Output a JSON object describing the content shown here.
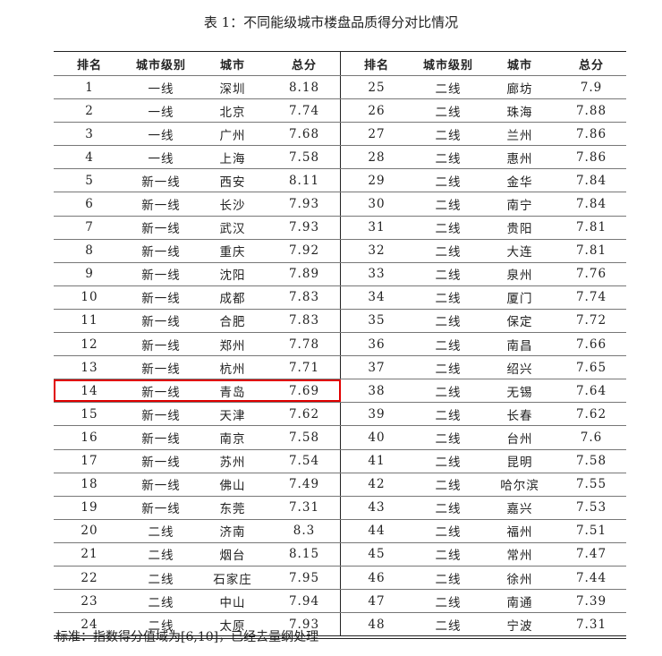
{
  "title": "表 1：不同能级城市楼盘品质得分对比情况",
  "headers": [
    "排名",
    "城市级别",
    "城市",
    "总分"
  ],
  "highlight_color": "#e00000",
  "highlighted_rank": "14",
  "rows_left": [
    [
      "1",
      "一线",
      "深圳",
      "8.18"
    ],
    [
      "2",
      "一线",
      "北京",
      "7.74"
    ],
    [
      "3",
      "一线",
      "广州",
      "7.68"
    ],
    [
      "4",
      "一线",
      "上海",
      "7.58"
    ],
    [
      "5",
      "新一线",
      "西安",
      "8.11"
    ],
    [
      "6",
      "新一线",
      "长沙",
      "7.93"
    ],
    [
      "7",
      "新一线",
      "武汉",
      "7.93"
    ],
    [
      "8",
      "新一线",
      "重庆",
      "7.92"
    ],
    [
      "9",
      "新一线",
      "沈阳",
      "7.89"
    ],
    [
      "10",
      "新一线",
      "成都",
      "7.83"
    ],
    [
      "11",
      "新一线",
      "合肥",
      "7.83"
    ],
    [
      "12",
      "新一线",
      "郑州",
      "7.78"
    ],
    [
      "13",
      "新一线",
      "杭州",
      "7.71"
    ],
    [
      "14",
      "新一线",
      "青岛",
      "7.69"
    ],
    [
      "15",
      "新一线",
      "天津",
      "7.62"
    ],
    [
      "16",
      "新一线",
      "南京",
      "7.58"
    ],
    [
      "17",
      "新一线",
      "苏州",
      "7.54"
    ],
    [
      "18",
      "新一线",
      "佛山",
      "7.49"
    ],
    [
      "19",
      "新一线",
      "东莞",
      "7.31"
    ],
    [
      "20",
      "二线",
      "济南",
      "8.3"
    ],
    [
      "21",
      "二线",
      "烟台",
      "8.15"
    ],
    [
      "22",
      "二线",
      "石家庄",
      "7.95"
    ],
    [
      "23",
      "二线",
      "中山",
      "7.94"
    ],
    [
      "24",
      "二线",
      "太原",
      "7.93"
    ]
  ],
  "rows_right": [
    [
      "25",
      "二线",
      "廊坊",
      "7.9"
    ],
    [
      "26",
      "二线",
      "珠海",
      "7.88"
    ],
    [
      "27",
      "二线",
      "兰州",
      "7.86"
    ],
    [
      "28",
      "二线",
      "惠州",
      "7.86"
    ],
    [
      "29",
      "二线",
      "金华",
      "7.84"
    ],
    [
      "30",
      "二线",
      "南宁",
      "7.84"
    ],
    [
      "31",
      "二线",
      "贵阳",
      "7.81"
    ],
    [
      "32",
      "二线",
      "大连",
      "7.81"
    ],
    [
      "33",
      "二线",
      "泉州",
      "7.76"
    ],
    [
      "34",
      "二线",
      "厦门",
      "7.74"
    ],
    [
      "35",
      "二线",
      "保定",
      "7.72"
    ],
    [
      "36",
      "二线",
      "南昌",
      "7.66"
    ],
    [
      "37",
      "二线",
      "绍兴",
      "7.65"
    ],
    [
      "38",
      "二线",
      "无锡",
      "7.64"
    ],
    [
      "39",
      "二线",
      "长春",
      "7.62"
    ],
    [
      "40",
      "二线",
      "台州",
      "7.6"
    ],
    [
      "41",
      "二线",
      "昆明",
      "7.58"
    ],
    [
      "42",
      "二线",
      "哈尔滨",
      "7.55"
    ],
    [
      "43",
      "二线",
      "嘉兴",
      "7.53"
    ],
    [
      "44",
      "二线",
      "福州",
      "7.51"
    ],
    [
      "45",
      "二线",
      "常州",
      "7.47"
    ],
    [
      "46",
      "二线",
      "徐州",
      "7.44"
    ],
    [
      "47",
      "二线",
      "南通",
      "7.39"
    ],
    [
      "48",
      "二线",
      "宁波",
      "7.31"
    ]
  ],
  "note": "标准：指数得分值域为[6,10]，已经去量纲处理"
}
